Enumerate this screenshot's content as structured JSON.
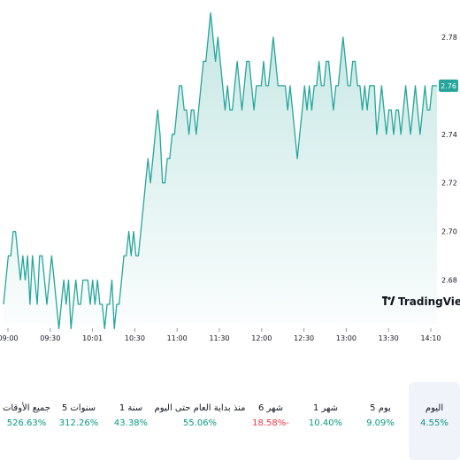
{
  "chart_data": {
    "type": "area",
    "x_labels": [
      "09:00",
      "09:30",
      "10:01",
      "10:30",
      "11:00",
      "11:30",
      "12:00",
      "12:30",
      "13:00",
      "13:30",
      "14:10"
    ],
    "y_ticks": [
      "2.78",
      "2.76",
      "2.74",
      "2.72",
      "2.70",
      "2.68"
    ],
    "ylim": [
      2.662,
      2.788
    ],
    "last_price": "2.76",
    "watermark": "TradingView",
    "line_color": "#26a69a",
    "fill_color": "#b2dfdb",
    "values": [
      2.67,
      2.68,
      2.69,
      2.69,
      2.7,
      2.7,
      2.69,
      2.68,
      2.69,
      2.68,
      2.69,
      2.67,
      2.69,
      2.68,
      2.67,
      2.69,
      2.69,
      2.68,
      2.67,
      2.68,
      2.69,
      2.68,
      2.67,
      2.66,
      2.67,
      2.68,
      2.67,
      2.68,
      2.66,
      2.67,
      2.68,
      2.67,
      2.67,
      2.68,
      2.68,
      2.68,
      2.67,
      2.68,
      2.67,
      2.68,
      2.67,
      2.67,
      2.66,
      2.67,
      2.67,
      2.68,
      2.66,
      2.67,
      2.67,
      2.68,
      2.69,
      2.69,
      2.7,
      2.69,
      2.7,
      2.69,
      2.69,
      2.7,
      2.71,
      2.72,
      2.73,
      2.72,
      2.73,
      2.74,
      2.75,
      2.74,
      2.72,
      2.72,
      2.73,
      2.73,
      2.74,
      2.74,
      2.75,
      2.76,
      2.76,
      2.75,
      2.75,
      2.74,
      2.75,
      2.75,
      2.74,
      2.75,
      2.76,
      2.77,
      2.77,
      2.78,
      2.79,
      2.78,
      2.77,
      2.78,
      2.77,
      2.76,
      2.75,
      2.76,
      2.75,
      2.75,
      2.76,
      2.77,
      2.76,
      2.75,
      2.76,
      2.77,
      2.77,
      2.76,
      2.75,
      2.76,
      2.76,
      2.76,
      2.77,
      2.76,
      2.76,
      2.77,
      2.78,
      2.77,
      2.76,
      2.76,
      2.76,
      2.76,
      2.75,
      2.76,
      2.75,
      2.74,
      2.73,
      2.74,
      2.75,
      2.76,
      2.75,
      2.76,
      2.75,
      2.76,
      2.76,
      2.77,
      2.76,
      2.76,
      2.77,
      2.77,
      2.76,
      2.75,
      2.76,
      2.76,
      2.77,
      2.78,
      2.77,
      2.76,
      2.76,
      2.77,
      2.77,
      2.76,
      2.76,
      2.75,
      2.76,
      2.75,
      2.76,
      2.76,
      2.76,
      2.74,
      2.75,
      2.76,
      2.75,
      2.74,
      2.75,
      2.75,
      2.74,
      2.75,
      2.75,
      2.74,
      2.75,
      2.76,
      2.75,
      2.74,
      2.75,
      2.76,
      2.75,
      2.74,
      2.75,
      2.76,
      2.75,
      2.75,
      2.76,
      2.76,
      2.76
    ]
  },
  "periods": [
    {
      "label": "اليوم",
      "value": "4.55%",
      "color": "#089981",
      "active": true
    },
    {
      "label": "5 يوم",
      "value": "9.09%",
      "color": "#089981",
      "active": false
    },
    {
      "label": "1 شهر",
      "value": "10.40%",
      "color": "#089981",
      "active": false
    },
    {
      "label": "6 شهر",
      "value": "18.58%-",
      "color": "#f23645",
      "active": false
    },
    {
      "label": "منذ بداية العام حتى اليوم",
      "value": "55.06%",
      "color": "#089981",
      "active": false
    },
    {
      "label": "1 سنة",
      "value": "43.38%",
      "color": "#089981",
      "active": false
    },
    {
      "label": "5 سنوات",
      "value": "312.26%",
      "color": "#089981",
      "active": false
    },
    {
      "label": "جميع الأوقات",
      "value": "526.63%",
      "color": "#089981",
      "active": false
    }
  ]
}
